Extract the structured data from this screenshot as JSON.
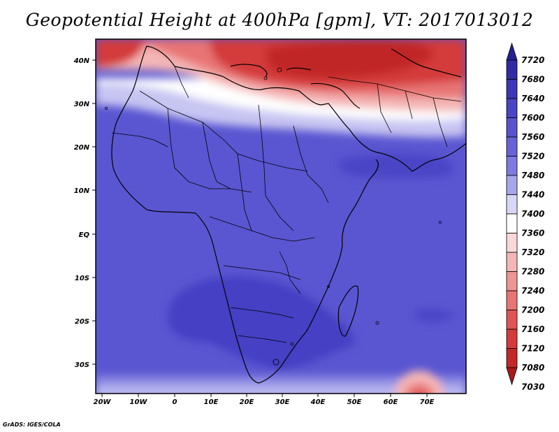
{
  "title": "Geopotential Height at 400hPa [gpm], VT: 2017013012",
  "credit": "GrADS: IGES/COLA",
  "map": {
    "lon_labels": [
      "20W",
      "10W",
      "0",
      "10E",
      "20E",
      "30E",
      "40E",
      "50E",
      "60E",
      "70E"
    ],
    "lat_labels": [
      "40N",
      "30N",
      "20N",
      "10N",
      "EQ",
      "10S",
      "20S",
      "30S"
    ]
  },
  "colorbar": {
    "levels": [
      "7720",
      "7680",
      "7640",
      "7600",
      "7560",
      "7520",
      "7480",
      "7440",
      "7400",
      "7360",
      "7320",
      "7280",
      "7240",
      "7200",
      "7160",
      "7120",
      "7080",
      "7030"
    ],
    "colors": [
      "#25208f",
      "#2f2aa6",
      "#3b36b8",
      "#4844c6",
      "#5753cf",
      "#6662d8",
      "#7d7ae0",
      "#a7a5ec",
      "#d8d7f6",
      "#ffffff",
      "#f9d8d8",
      "#f4b6b6",
      "#ee9595",
      "#e87474",
      "#e05454",
      "#d43a3a",
      "#c12828",
      "#a71b1b"
    ]
  }
}
